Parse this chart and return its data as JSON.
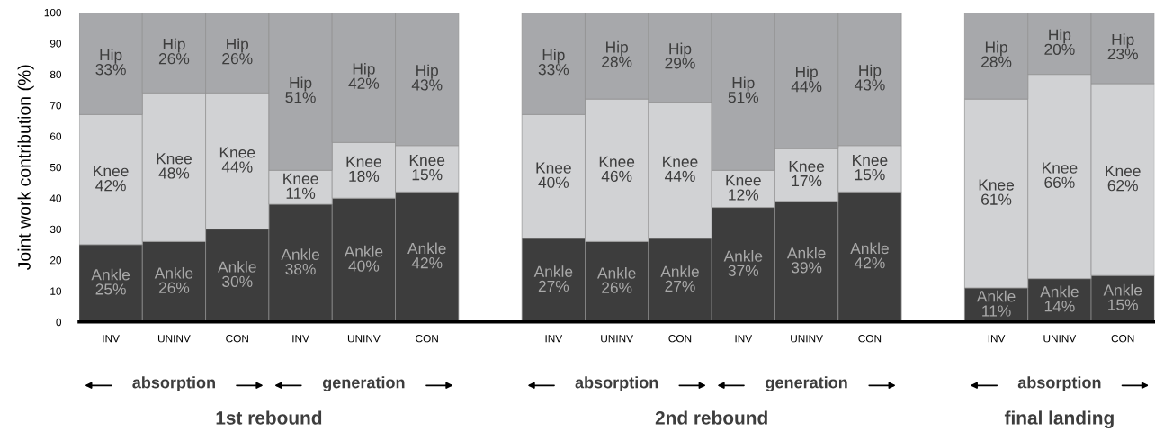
{
  "chart_data": {
    "type": "bar",
    "stacked": true,
    "ylabel": "Joint work contribution (%)",
    "categories": [
      "INV",
      "UNINV",
      "CON",
      "INV",
      "UNINV",
      "CON",
      null,
      "INV",
      "UNINV",
      "CON",
      "INV",
      "UNINV",
      "CON",
      null,
      "INV",
      "UNINV",
      "CON"
    ],
    "series": [
      {
        "name": "Ankle",
        "color": "#3d3d3d",
        "values": [
          25,
          26,
          30,
          38,
          40,
          42,
          null,
          27,
          26,
          27,
          37,
          39,
          42,
          null,
          11,
          14,
          15
        ],
        "value_labels": [
          "25%",
          "26%",
          "30%",
          "38%",
          "40%",
          "42%",
          null,
          "27%",
          "26%",
          "27%",
          "37%",
          "39%",
          "42%",
          null,
          "11%",
          "14%",
          "15%"
        ]
      },
      {
        "name": "Knee",
        "color": "#d1d2d4",
        "values": [
          42,
          48,
          44,
          11,
          18,
          15,
          null,
          40,
          46,
          44,
          12,
          17,
          15,
          null,
          61,
          66,
          62
        ],
        "value_labels": [
          "42%",
          "48%",
          "44%",
          "11%",
          "18%",
          "15%",
          null,
          "40%",
          "46%",
          "44%",
          "12%",
          "17%",
          "15%",
          null,
          "61%",
          "66%",
          "62%"
        ]
      },
      {
        "name": "Hip",
        "color": "#a7a8ab",
        "values": [
          33,
          26,
          26,
          51,
          42,
          43,
          null,
          33,
          28,
          29,
          51,
          44,
          43,
          null,
          28,
          20,
          23
        ],
        "value_labels": [
          "33%",
          "26%",
          "26%",
          "51%",
          "42%",
          "43%",
          null,
          "33%",
          "28%",
          "29%",
          "51%",
          "44%",
          "43%",
          null,
          "28%",
          "20%",
          "23%"
        ]
      }
    ],
    "ylim": [
      0,
      100
    ],
    "yticks": [
      0,
      10,
      20,
      30,
      40,
      50,
      60,
      70,
      80,
      90,
      100
    ],
    "grid": false,
    "legend": false,
    "annotations": [
      "absorption",
      "generation",
      "absorption",
      "generation",
      "absorption",
      "1st rebound",
      "2nd rebound",
      "final landing"
    ]
  }
}
